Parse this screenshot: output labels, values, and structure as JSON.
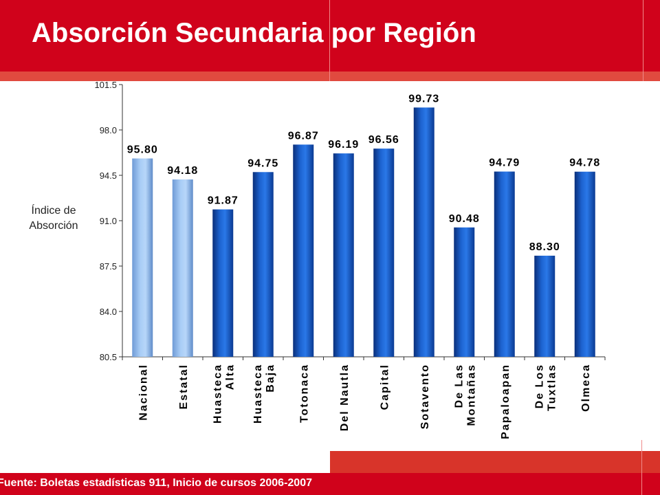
{
  "page": {
    "title": "Absorción Secundaria por Región",
    "footer": "Fuente: Boletas estadísticas 911, Inicio de cursos 2006-2007"
  },
  "colors": {
    "header_red": "#d0021b",
    "bar_light": "#8db9ef",
    "bar_dark": "#0a3f9c"
  },
  "chart_data": {
    "type": "bar",
    "title": "",
    "ylabel": "Índice de Absorción",
    "ylim": [
      80.5,
      101.5
    ],
    "yticks": [
      80.5,
      84.0,
      87.5,
      91.0,
      94.5,
      98.0,
      101.5
    ],
    "ytick_labels": [
      "80.5",
      "84.0",
      "87.5",
      "91.0",
      "94.5",
      "98.0",
      "101.5"
    ],
    "categories": [
      "Nacional",
      "Estatal",
      "Huasteca Alta",
      "Huasteca Baja",
      "Totonaca",
      "Del Nautla",
      "Capital",
      "Sotavento",
      "De Las Montañas",
      "Papaloapan",
      "De Los Tuxtlas",
      "Olmeca"
    ],
    "category_lines": [
      [
        "Nacional"
      ],
      [
        "Estatal"
      ],
      [
        "Huasteca",
        "Alta"
      ],
      [
        "Huasteca",
        "Baja"
      ],
      [
        "Totonaca"
      ],
      [
        "Del Nautla"
      ],
      [
        "Capital"
      ],
      [
        "Sotavento"
      ],
      [
        "De Las",
        "Montañas"
      ],
      [
        "Papaloapan"
      ],
      [
        "De Los",
        "Tuxtlas"
      ],
      [
        "Olmeca"
      ]
    ],
    "values": [
      95.8,
      94.18,
      91.87,
      94.75,
      96.87,
      96.19,
      96.56,
      99.73,
      90.48,
      94.79,
      88.3,
      94.78
    ],
    "value_labels": [
      "95.80",
      "94.18",
      "91.87",
      "94.75",
      "96.87",
      "96.19",
      "96.56",
      "99.73",
      "90.48",
      "94.79",
      "88.30",
      "94.78"
    ],
    "highlighted": [
      "Nacional",
      "Estatal"
    ],
    "grid": false,
    "legend": "none"
  }
}
